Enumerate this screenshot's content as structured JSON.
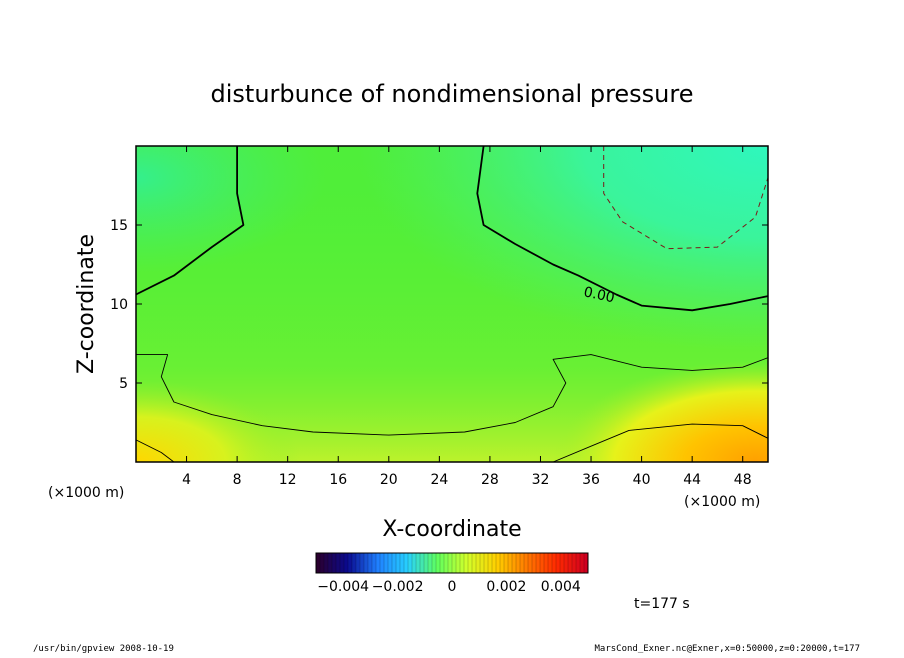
{
  "chart_data": {
    "type": "heatmap",
    "title": "disturbunce of nondimensional pressure",
    "xlabel": "X-coordinate",
    "ylabel": "Z-coordinate",
    "x_unit_left": "(×1000 m)",
    "x_unit_right": "(×1000 m)",
    "xlim": [
      0,
      50
    ],
    "ylim": [
      0,
      20
    ],
    "xticks": [
      4,
      8,
      12,
      16,
      20,
      24,
      28,
      32,
      36,
      40,
      44,
      48
    ],
    "yticks": [
      5,
      10,
      15
    ],
    "contour_label": "0.00",
    "contours": [
      {
        "level": 0.0,
        "style": "solid-thick",
        "points": [
          [
            0,
            10.6
          ],
          [
            3,
            11.8
          ],
          [
            6,
            13.6
          ],
          [
            8.5,
            15
          ],
          [
            8,
            17
          ],
          [
            8,
            20
          ]
        ]
      },
      {
        "level": 0.0,
        "style": "solid-thick",
        "points": [
          [
            27.5,
            20
          ],
          [
            27,
            17
          ],
          [
            27.5,
            15
          ],
          [
            30,
            13.8
          ],
          [
            33,
            12.5
          ],
          [
            35,
            11.8
          ],
          [
            38,
            10.6
          ],
          [
            40,
            9.9
          ],
          [
            44,
            9.6
          ],
          [
            47,
            10
          ],
          [
            50,
            10.5
          ]
        ]
      },
      {
        "level": -0.0005,
        "style": "dashed",
        "points": [
          [
            37,
            20
          ],
          [
            37,
            17
          ],
          [
            38.5,
            15.2
          ],
          [
            42,
            13.5
          ],
          [
            46,
            13.6
          ],
          [
            49,
            15.5
          ],
          [
            50,
            18
          ]
        ]
      },
      {
        "level": 0.0005,
        "style": "solid-thin",
        "points": [
          [
            0,
            6.8
          ],
          [
            2.5,
            6.8
          ],
          [
            2,
            5.4
          ],
          [
            3,
            3.8
          ],
          [
            6,
            3
          ],
          [
            10,
            2.3
          ],
          [
            14,
            1.9
          ],
          [
            20,
            1.7
          ],
          [
            26,
            1.9
          ],
          [
            30,
            2.5
          ],
          [
            33,
            3.5
          ],
          [
            34,
            5
          ],
          [
            33,
            6.5
          ],
          [
            36,
            6.8
          ],
          [
            40,
            6
          ],
          [
            44,
            5.8
          ],
          [
            48,
            6
          ],
          [
            50,
            6.6
          ]
        ]
      },
      {
        "level": 0.001,
        "style": "solid-thin",
        "points": [
          [
            0,
            1.4
          ],
          [
            2,
            0.6
          ],
          [
            3,
            0
          ]
        ]
      },
      {
        "level": 0.001,
        "style": "solid-thin",
        "points": [
          [
            33,
            0
          ],
          [
            36,
            1
          ],
          [
            39,
            2
          ],
          [
            44,
            2.4
          ],
          [
            48,
            2.3
          ],
          [
            50,
            1.5
          ]
        ]
      }
    ],
    "colorbar": {
      "ticks": [
        "−0.004",
        "−0.002",
        "0",
        "0.002",
        "0.004"
      ],
      "min": -0.005,
      "max": 0.005,
      "colors": [
        "#2a0030",
        "#0a0a90",
        "#1f7fff",
        "#27d0ff",
        "#5fff5f",
        "#d2ff2a",
        "#ffd000",
        "#ff7a00",
        "#ff2a00",
        "#d00020"
      ]
    }
  },
  "annotations": {
    "time": "t=177 s",
    "footer_left": "/usr/bin/gpview   2008-10-19",
    "footer_right": "MarsCond_Exner.nc@Exner,x=0:50000,z=0:20000,t=177"
  }
}
